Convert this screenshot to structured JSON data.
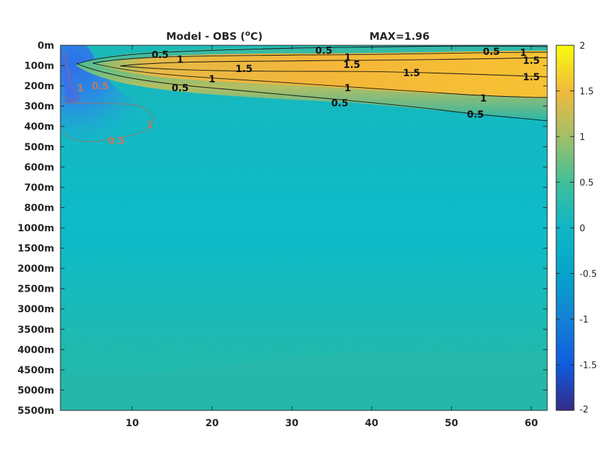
{
  "chart_data": {
    "type": "heatmap",
    "title": "Model - OBS (°C)",
    "title_left": "Model - OBS (",
    "title_degree": "o",
    "title_unit": "C)",
    "max_annotation": "MAX=1.96",
    "y_tick_labels": [
      "0m",
      "100m",
      "200m",
      "300m",
      "400m",
      "500m",
      "600m",
      "700m",
      "800m",
      "1000m",
      "1500m",
      "2000m",
      "2500m",
      "3000m",
      "3500m",
      "4000m",
      "4500m",
      "5000m",
      "5500m"
    ],
    "x_ticks": [
      10,
      20,
      30,
      40,
      50,
      60
    ],
    "x_tick_labels": [
      "10",
      "20",
      "30",
      "40",
      "50",
      "60"
    ],
    "xlim": [
      1,
      62
    ],
    "colorbar": {
      "min": -2,
      "max": 2,
      "ticks": [
        2,
        1.5,
        1,
        0.5,
        0,
        -0.5,
        -1,
        -1.5,
        -2
      ],
      "tick_labels": [
        "2",
        "1.5",
        "1",
        "0.5",
        "0",
        "-0.5",
        "-1",
        "-1.5",
        "-2"
      ],
      "colormap": "parula"
    },
    "contour_levels": [
      -1,
      -0.5,
      0.5,
      1,
      1.5
    ],
    "contour_labels": [
      {
        "text": "0.5",
        "x": 13.5,
        "depth_index": 0.45
      },
      {
        "text": "1",
        "x": 16,
        "depth_index": 0.7
      },
      {
        "text": "0.5",
        "x": 34,
        "depth_index": 0.25
      },
      {
        "text": "1",
        "x": 37,
        "depth_index": 0.6
      },
      {
        "text": "0.5",
        "x": 55,
        "depth_index": 0.3
      },
      {
        "text": "1",
        "x": 59,
        "depth_index": 0.35
      },
      {
        "text": "1.5",
        "x": 60,
        "depth_index": 0.75
      },
      {
        "text": "1.5",
        "x": 24,
        "depth_index": 1.15
      },
      {
        "text": "1.5",
        "x": 37.5,
        "depth_index": 0.95
      },
      {
        "text": "1.5",
        "x": 45,
        "depth_index": 1.35
      },
      {
        "text": "1.5",
        "x": 60,
        "depth_index": 1.55
      },
      {
        "text": "1",
        "x": 20,
        "depth_index": 1.65
      },
      {
        "text": "0.5",
        "x": 16,
        "depth_index": 2.1
      },
      {
        "text": "1",
        "x": 37,
        "depth_index": 2.1
      },
      {
        "text": "0.5",
        "x": 36,
        "depth_index": 2.85
      },
      {
        "text": "1",
        "x": 54,
        "depth_index": 2.6
      },
      {
        "text": "0.5",
        "x": 53,
        "depth_index": 3.4
      }
    ],
    "negative_contour_labels": [
      {
        "text": "1",
        "x": 3.5,
        "depth_index": 2.1
      },
      {
        "text": "0.5",
        "x": 6,
        "depth_index": 2.0
      },
      {
        "text": "1",
        "x": 12.2,
        "depth_index": 3.9
      },
      {
        "text": "0.5",
        "x": 8,
        "depth_index": 4.7
      }
    ],
    "features": {
      "surface_warm_tongue": {
        "x_start": 5,
        "x_end": 62,
        "peak_value": 1.96,
        "depth_center_index": 1.1
      },
      "cold_patch": {
        "x_start": 1,
        "x_end": 12,
        "min_value": -1.2,
        "depth_range_index": [
          0,
          5
        ]
      },
      "deep_ocean_value": 0.1
    }
  },
  "colors": {
    "parula": [
      "#352a87",
      "#0f5cdd",
      "#1481d6",
      "#06a4ca",
      "#2eb7a4",
      "#87bf77",
      "#d1bb59",
      "#fec832",
      "#f9fb0e"
    ]
  }
}
